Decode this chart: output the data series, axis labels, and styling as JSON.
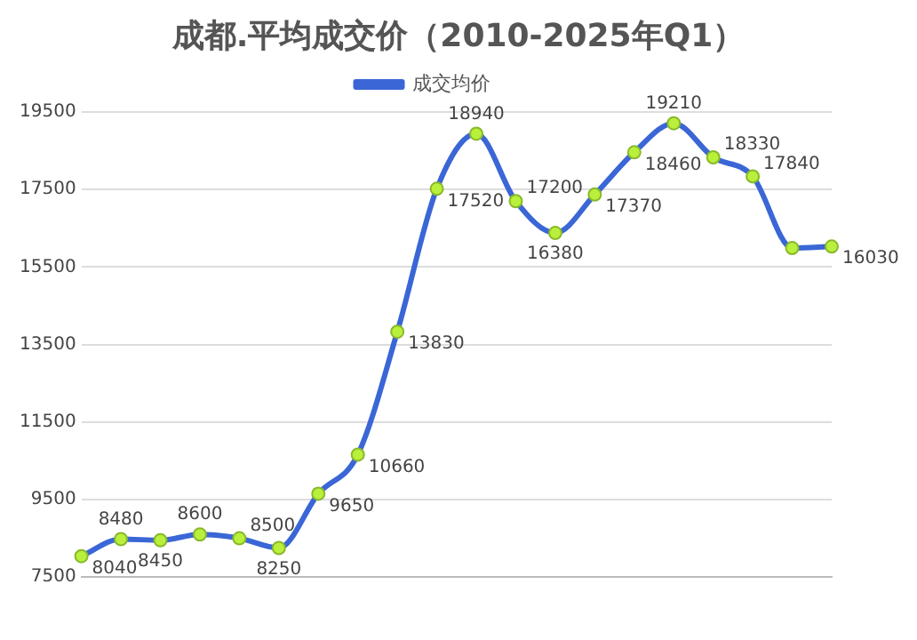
{
  "chart_data": {
    "type": "line",
    "title": "成都.平均成交价（2010-2025年Q1）",
    "categories": [
      null,
      null,
      null,
      null,
      null,
      null,
      null,
      null,
      null,
      null,
      null,
      null,
      null,
      null,
      null,
      null,
      null,
      null,
      null,
      null
    ],
    "series": [
      {
        "name": "成交均价",
        "color": "#3a66d6",
        "values": [
          8040,
          8480,
          8450,
          8600,
          8500,
          8250,
          9650,
          10660,
          13830,
          17520,
          18940,
          17200,
          16380,
          17370,
          18460,
          19210,
          18330,
          17840,
          15990,
          16030
        ],
        "value_labels": [
          "8040",
          "8480",
          "8450",
          "8600",
          "8500",
          "8250",
          "9650",
          "10660",
          "13830",
          "17520",
          "18940",
          "17200",
          "16380",
          "17370",
          "18460",
          "19210",
          "18330",
          "17840",
          null,
          "16030"
        ]
      }
    ],
    "ylim": [
      7500,
      19500
    ],
    "yticks": [
      7500,
      9500,
      11500,
      13500,
      15500,
      17500,
      19500
    ],
    "grid": "y",
    "legend": "top",
    "marker": "circle",
    "line_style": "solid"
  }
}
